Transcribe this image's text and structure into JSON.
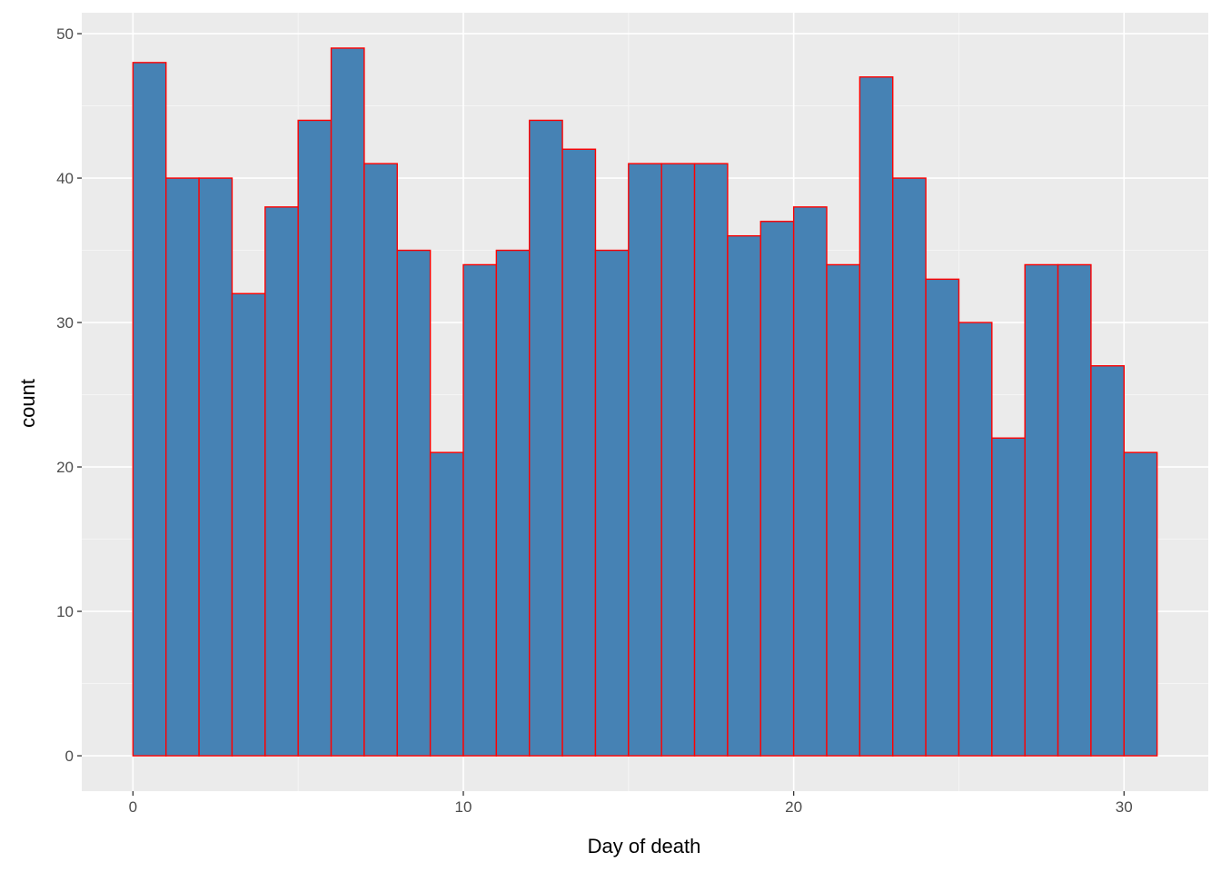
{
  "chart_data": {
    "type": "bar",
    "subtype": "histogram",
    "xlabel": "Day of death",
    "ylabel": "count",
    "bin_width": 1,
    "x_bin_starts": [
      0,
      1,
      2,
      3,
      4,
      5,
      6,
      7,
      8,
      9,
      10,
      11,
      12,
      13,
      14,
      15,
      16,
      17,
      18,
      19,
      20,
      21,
      22,
      23,
      24,
      25,
      26,
      27,
      28,
      29,
      30
    ],
    "values": [
      48,
      40,
      40,
      32,
      38,
      44,
      49,
      41,
      35,
      21,
      34,
      35,
      44,
      42,
      35,
      41,
      41,
      41,
      36,
      37,
      38,
      34,
      47,
      40,
      33,
      30,
      22,
      34,
      34,
      27,
      21
    ],
    "xlim": [
      -1.55,
      32.55
    ],
    "ylim": [
      -2.45,
      51.45
    ],
    "x_ticks": [
      0,
      10,
      20,
      30
    ],
    "x_tick_labels": [
      "0",
      "10",
      "20",
      "30"
    ],
    "y_ticks": [
      0,
      10,
      20,
      30,
      40,
      50
    ],
    "y_tick_labels": [
      "0",
      "10",
      "20",
      "30",
      "40",
      "50"
    ],
    "grid": true,
    "legend": "none",
    "colors": {
      "panel_background": "#ebebeb",
      "grid_major": "#ffffff",
      "grid_minor": "#f5f5f5",
      "bar_fill": "#4682b4",
      "bar_outline": "#ff0000",
      "tick_text": "#4d4d4d",
      "tick_mark": "#333333"
    }
  }
}
